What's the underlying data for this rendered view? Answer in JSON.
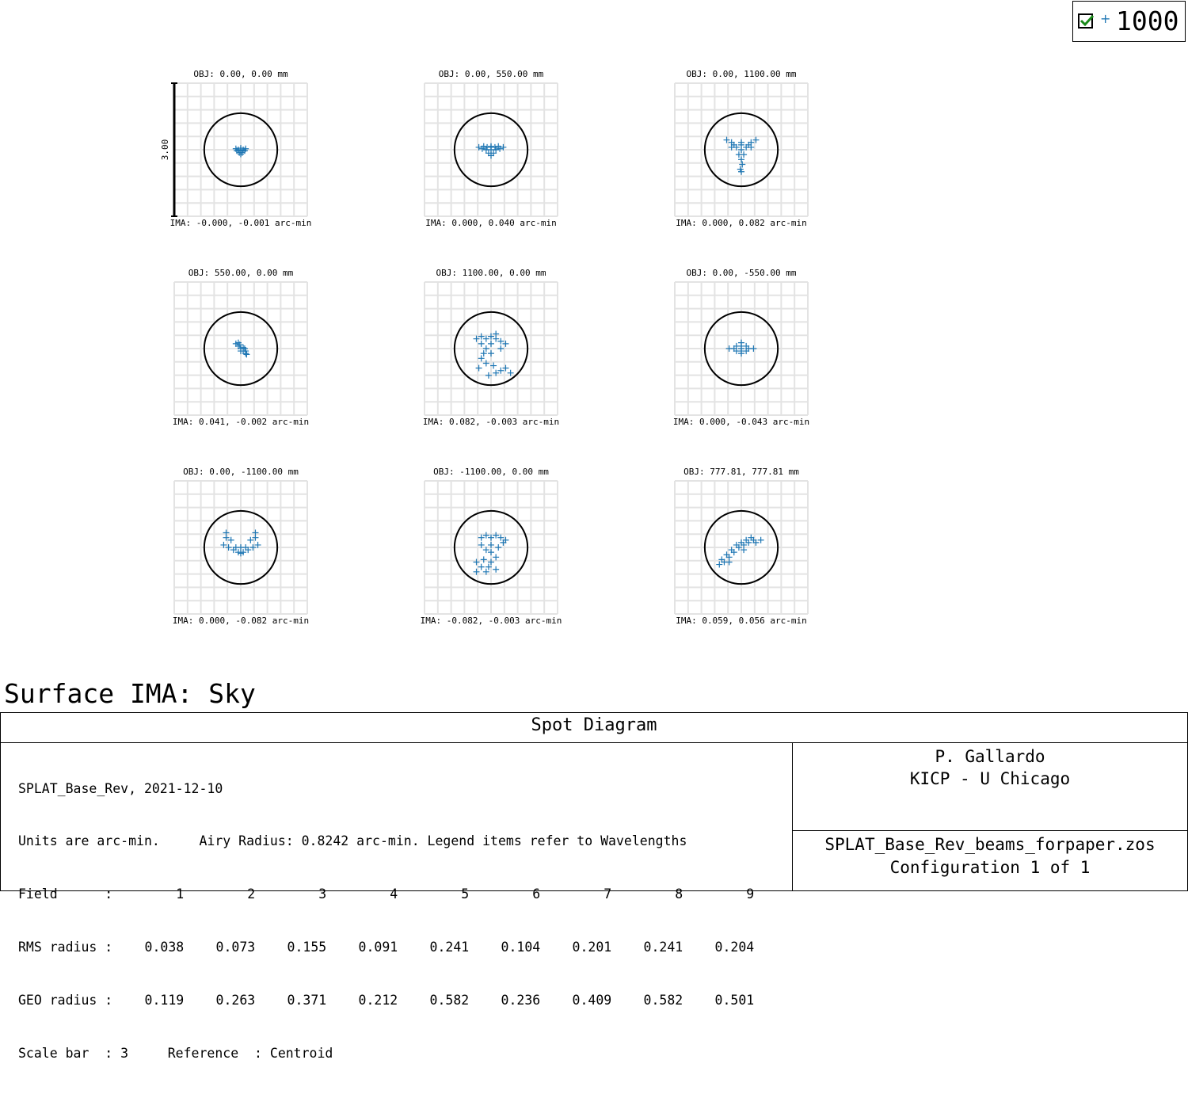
{
  "legend": {
    "checked": true,
    "wavelength_label": "1000",
    "marker_color": "#1f77b4"
  },
  "surface_title": "Surface IMA: Sky",
  "chart_data": {
    "type": "scatter",
    "title": "Spot Diagram",
    "scale_bar": 3,
    "scale_bar_label": "3.00",
    "airy_radius": 0.8242,
    "units": "arc-min",
    "marker": "+",
    "color": "#1f77b4",
    "airy_color": "#000000",
    "grid": true,
    "panels": [
      {
        "obj": "OBJ: 0.00, 0.00 mm",
        "ima": "IMA: -0.000, -0.001 arc-min",
        "points": [
          [
            -0.1,
            0.02
          ],
          [
            0.1,
            0.02
          ],
          [
            0,
            0.03
          ],
          [
            -0.05,
            0
          ],
          [
            0.05,
            0
          ],
          [
            0,
            -0.02
          ],
          [
            -0.03,
            -0.06
          ],
          [
            0.03,
            -0.06
          ],
          [
            0,
            -0.09
          ],
          [
            0.08,
            -0.02
          ],
          [
            -0.08,
            -0.02
          ],
          [
            0,
            0
          ]
        ]
      },
      {
        "obj": "OBJ: 0.00, 550.00 mm",
        "ima": "IMA: 0.000, 0.040 arc-min",
        "points": [
          [
            -0.25,
            0.05
          ],
          [
            0.25,
            0.05
          ],
          [
            -0.15,
            0.07
          ],
          [
            0.15,
            0.07
          ],
          [
            0,
            0.07
          ],
          [
            -0.1,
            0
          ],
          [
            0.1,
            0
          ],
          [
            0,
            0
          ],
          [
            -0.05,
            -0.07
          ],
          [
            0.05,
            -0.07
          ],
          [
            0,
            -0.12
          ],
          [
            -0.18,
            0.02
          ],
          [
            0.18,
            0.02
          ],
          [
            0,
            0.05
          ],
          [
            -0.08,
            0.05
          ],
          [
            0.08,
            0.05
          ]
        ]
      },
      {
        "obj": "OBJ: 0.00, 1100.00 mm",
        "ima": "IMA: 0.000, 0.082 arc-min",
        "points": [
          [
            -0.3,
            0.2
          ],
          [
            0.3,
            0.2
          ],
          [
            -0.2,
            0.15
          ],
          [
            0.2,
            0.15
          ],
          [
            0,
            0.15
          ],
          [
            -0.1,
            0.05
          ],
          [
            0.1,
            0.05
          ],
          [
            -0.2,
            0.05
          ],
          [
            0.2,
            0.05
          ],
          [
            0,
            0
          ],
          [
            -0.05,
            -0.1
          ],
          [
            0.05,
            -0.1
          ],
          [
            0,
            -0.2
          ],
          [
            0.02,
            -0.3
          ],
          [
            -0.02,
            -0.4
          ],
          [
            0,
            -0.45
          ],
          [
            -0.15,
            0.1
          ],
          [
            0.15,
            0.1
          ],
          [
            0,
            0.1
          ]
        ]
      },
      {
        "obj": "OBJ: 550.00, 0.00 mm",
        "ima": "IMA: 0.041, -0.002 arc-min",
        "points": [
          [
            -0.1,
            0.1
          ],
          [
            -0.05,
            0.05
          ],
          [
            0,
            0
          ],
          [
            0.05,
            -0.05
          ],
          [
            0.1,
            -0.1
          ],
          [
            -0.05,
            0.12
          ],
          [
            0.05,
            0.02
          ],
          [
            0.1,
            -0.05
          ],
          [
            0,
            -0.05
          ],
          [
            0.12,
            -0.12
          ],
          [
            -0.02,
            0.08
          ],
          [
            0.08,
            0
          ]
        ]
      },
      {
        "obj": "OBJ: 1100.00, 0.00 mm",
        "ima": "IMA: 0.082, -0.003 arc-min",
        "points": [
          [
            -0.3,
            0.2
          ],
          [
            -0.2,
            0.25
          ],
          [
            -0.1,
            0.2
          ],
          [
            0,
            0.25
          ],
          [
            0.1,
            0.2
          ],
          [
            0.2,
            0.15
          ],
          [
            0.3,
            0.1
          ],
          [
            -0.2,
            0.1
          ],
          [
            0,
            0.1
          ],
          [
            0.2,
            0
          ],
          [
            -0.1,
            0
          ],
          [
            0,
            -0.1
          ],
          [
            -0.2,
            -0.2
          ],
          [
            -0.1,
            -0.3
          ],
          [
            -0.25,
            -0.4
          ],
          [
            0.05,
            -0.35
          ],
          [
            0.2,
            -0.45
          ],
          [
            0.1,
            -0.5
          ],
          [
            -0.05,
            -0.55
          ],
          [
            0.3,
            -0.4
          ],
          [
            0.4,
            -0.5
          ],
          [
            -0.15,
            -0.1
          ],
          [
            0.1,
            0.3
          ]
        ]
      },
      {
        "obj": "OBJ: 0.00, -550.00 mm",
        "ima": "IMA: 0.000, -0.043 arc-min",
        "points": [
          [
            0,
            0.12
          ],
          [
            -0.1,
            0.05
          ],
          [
            0.1,
            0.05
          ],
          [
            -0.25,
            0
          ],
          [
            0.25,
            0
          ],
          [
            -0.15,
            0
          ],
          [
            0.15,
            0
          ],
          [
            0,
            0
          ],
          [
            -0.1,
            -0.05
          ],
          [
            0.1,
            -0.05
          ],
          [
            0,
            -0.1
          ],
          [
            0,
            -0.05
          ],
          [
            0,
            0.05
          ]
        ]
      },
      {
        "obj": "OBJ: 0.00, -1100.00 mm",
        "ima": "IMA: 0.000, -0.082 arc-min",
        "points": [
          [
            -0.3,
            0.3
          ],
          [
            0.3,
            0.3
          ],
          [
            -0.2,
            0.15
          ],
          [
            0.2,
            0.15
          ],
          [
            -0.35,
            0.05
          ],
          [
            0.35,
            0.05
          ],
          [
            -0.25,
            0
          ],
          [
            0.25,
            0
          ],
          [
            0,
            0
          ],
          [
            -0.1,
            0
          ],
          [
            0.1,
            0
          ],
          [
            -0.15,
            -0.05
          ],
          [
            0.15,
            -0.05
          ],
          [
            -0.05,
            -0.1
          ],
          [
            0.05,
            -0.1
          ],
          [
            0,
            -0.12
          ],
          [
            -0.3,
            0.2
          ],
          [
            0.3,
            0.2
          ]
        ]
      },
      {
        "obj": "OBJ: -1100.00, 0.00 mm",
        "ima": "IMA: -0.082, -0.003 arc-min",
        "points": [
          [
            -0.2,
            0.2
          ],
          [
            -0.1,
            0.25
          ],
          [
            0,
            0.2
          ],
          [
            0.1,
            0.25
          ],
          [
            0.2,
            0.2
          ],
          [
            0.25,
            0.1
          ],
          [
            -0.2,
            0.05
          ],
          [
            0,
            0.05
          ],
          [
            0.15,
            0
          ],
          [
            -0.1,
            -0.05
          ],
          [
            0,
            -0.1
          ],
          [
            0.1,
            -0.2
          ],
          [
            0,
            -0.3
          ],
          [
            -0.15,
            -0.25
          ],
          [
            -0.3,
            -0.3
          ],
          [
            -0.2,
            -0.4
          ],
          [
            -0.05,
            -0.4
          ],
          [
            0.1,
            -0.45
          ],
          [
            -0.3,
            -0.5
          ],
          [
            -0.1,
            -0.5
          ],
          [
            0.3,
            0.15
          ]
        ]
      },
      {
        "obj": "OBJ: 777.81, 777.81 mm",
        "ima": "IMA: 0.059, 0.056 arc-min",
        "points": [
          [
            -0.45,
            -0.35
          ],
          [
            -0.35,
            -0.3
          ],
          [
            -0.25,
            -0.2
          ],
          [
            -0.15,
            -0.1
          ],
          [
            -0.05,
            0
          ],
          [
            0.05,
            0.05
          ],
          [
            0.15,
            0.1
          ],
          [
            0.25,
            0.15
          ],
          [
            0.4,
            0.15
          ],
          [
            0.3,
            0.1
          ],
          [
            0.1,
            0.15
          ],
          [
            -0.1,
            0.05
          ],
          [
            -0.2,
            -0.05
          ],
          [
            -0.3,
            -0.15
          ],
          [
            -0.4,
            -0.25
          ],
          [
            0,
            0.1
          ],
          [
            0.2,
            0.2
          ],
          [
            -0.25,
            -0.3
          ],
          [
            0.05,
            -0.05
          ]
        ]
      }
    ]
  },
  "info": {
    "title": "Spot Diagram",
    "line1": "SPLAT_Base_Rev, 2021-12-10",
    "line2": "Units are arc-min.     Airy Radius: 0.8242 arc-min. Legend items refer to Wavelengths",
    "field_label": "Field      :",
    "field_values": [
      "1",
      "2",
      "3",
      "4",
      "5",
      "6",
      "7",
      "8",
      "9"
    ],
    "rms_label": "RMS radius :",
    "rms_values": [
      "0.038",
      "0.073",
      "0.155",
      "0.091",
      "0.241",
      "0.104",
      "0.201",
      "0.241",
      "0.204"
    ],
    "geo_label": "GEO radius :",
    "geo_values": [
      "0.119",
      "0.263",
      "0.371",
      "0.212",
      "0.582",
      "0.236",
      "0.409",
      "0.582",
      "0.501"
    ],
    "scale_line": "Scale bar  : 3     Reference  : Centroid",
    "author": "P. Gallardo",
    "institution": "KICP - U Chicago",
    "file": "SPLAT_Base_Rev_beams_forpaper.zos",
    "config": "Configuration 1 of 1"
  }
}
